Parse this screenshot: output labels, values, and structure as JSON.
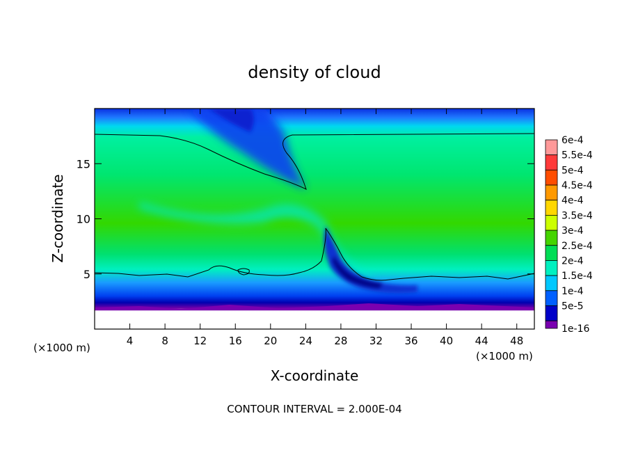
{
  "chart_data": {
    "type": "heatmap",
    "title": "density of cloud",
    "xlabel": "X-coordinate",
    "ylabel": "Z-coordinate",
    "x_unit": "(×1000 m)",
    "x_unit_right": "(×1000 m)",
    "xlim": [
      0,
      50
    ],
    "ylim": [
      0,
      20
    ],
    "x_ticks": [
      4,
      8,
      12,
      16,
      20,
      24,
      28,
      32,
      36,
      40,
      44,
      48
    ],
    "y_ticks": [
      5,
      10,
      15
    ],
    "footer": "CONTOUR INTERVAL = 2.000E-04",
    "colorbar": {
      "labels": [
        "6e-4",
        "5.5e-4",
        "5e-4",
        "4.5e-4",
        "4e-4",
        "3.5e-4",
        "3e-4",
        "2.5e-4",
        "2e-4",
        "1.5e-4",
        "1e-4",
        "5e-5",
        "1e-16"
      ],
      "colors": [
        "#ff9999",
        "#ff3a3a",
        "#ff4d00",
        "#ff9900",
        "#ffd700",
        "#ccff00",
        "#44d400",
        "#00dd55",
        "#00f0c0",
        "#00c8ff",
        "#0060ff",
        "#0000c8",
        "#7a00b0"
      ]
    },
    "grid": false
  }
}
